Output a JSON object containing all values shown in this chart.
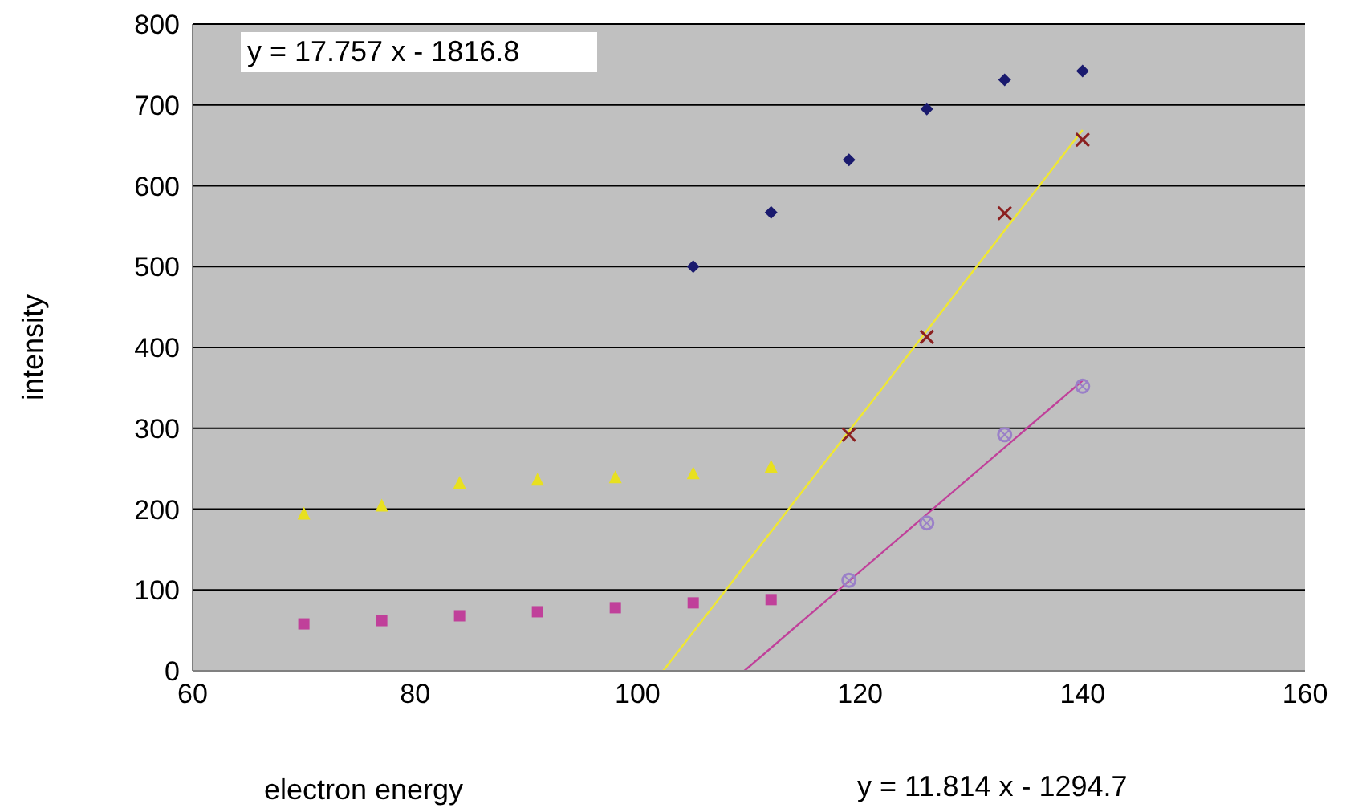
{
  "chart_data": {
    "type": "scatter",
    "xlabel": "electron energy",
    "ylabel": "intensity",
    "annotations": [
      "y = 17.757 x - 1816.8",
      "y = 11.814 x - 1294.7"
    ],
    "xlim": [
      60,
      160
    ],
    "xticks": [
      60,
      80,
      100,
      120,
      140,
      160
    ],
    "ylim": [
      0,
      800
    ],
    "yticks": [
      0,
      100,
      200,
      300,
      400,
      500,
      600,
      700,
      800
    ],
    "grid": "y",
    "series": [
      {
        "color": "#1a1a6e",
        "marker": "diamond",
        "x": [
          105,
          112,
          119,
          126,
          133,
          140
        ],
        "values": [
          500,
          567,
          632,
          695,
          731,
          742
        ]
      },
      {
        "color": "#e8e020",
        "marker": "triangle",
        "x": [
          70,
          77,
          84,
          91,
          98,
          105,
          112
        ],
        "values": [
          195,
          205,
          233,
          237,
          240,
          245,
          253
        ]
      },
      {
        "color": "#c0409a",
        "marker": "square",
        "x": [
          70,
          77,
          84,
          91,
          98,
          105,
          112
        ],
        "values": [
          58,
          62,
          68,
          73,
          78,
          84,
          88
        ]
      },
      {
        "color": "#8b2020",
        "marker": "cross",
        "x": [
          119,
          126,
          133,
          140
        ],
        "values": [
          292,
          413,
          566,
          657
        ]
      },
      {
        "color": "#9a80c8",
        "marker": "circle",
        "x": [
          119,
          126,
          133,
          140
        ],
        "values": [
          112,
          183,
          292,
          352
        ]
      },
      {
        "type": "line",
        "color": "#f0e830",
        "marker": "none",
        "x": [
          102.3,
          140
        ],
        "values": [
          0,
          669
        ]
      },
      {
        "type": "line",
        "color": "#c0409a",
        "marker": "none",
        "x": [
          109.6,
          140
        ],
        "values": [
          0,
          359
        ]
      }
    ]
  }
}
